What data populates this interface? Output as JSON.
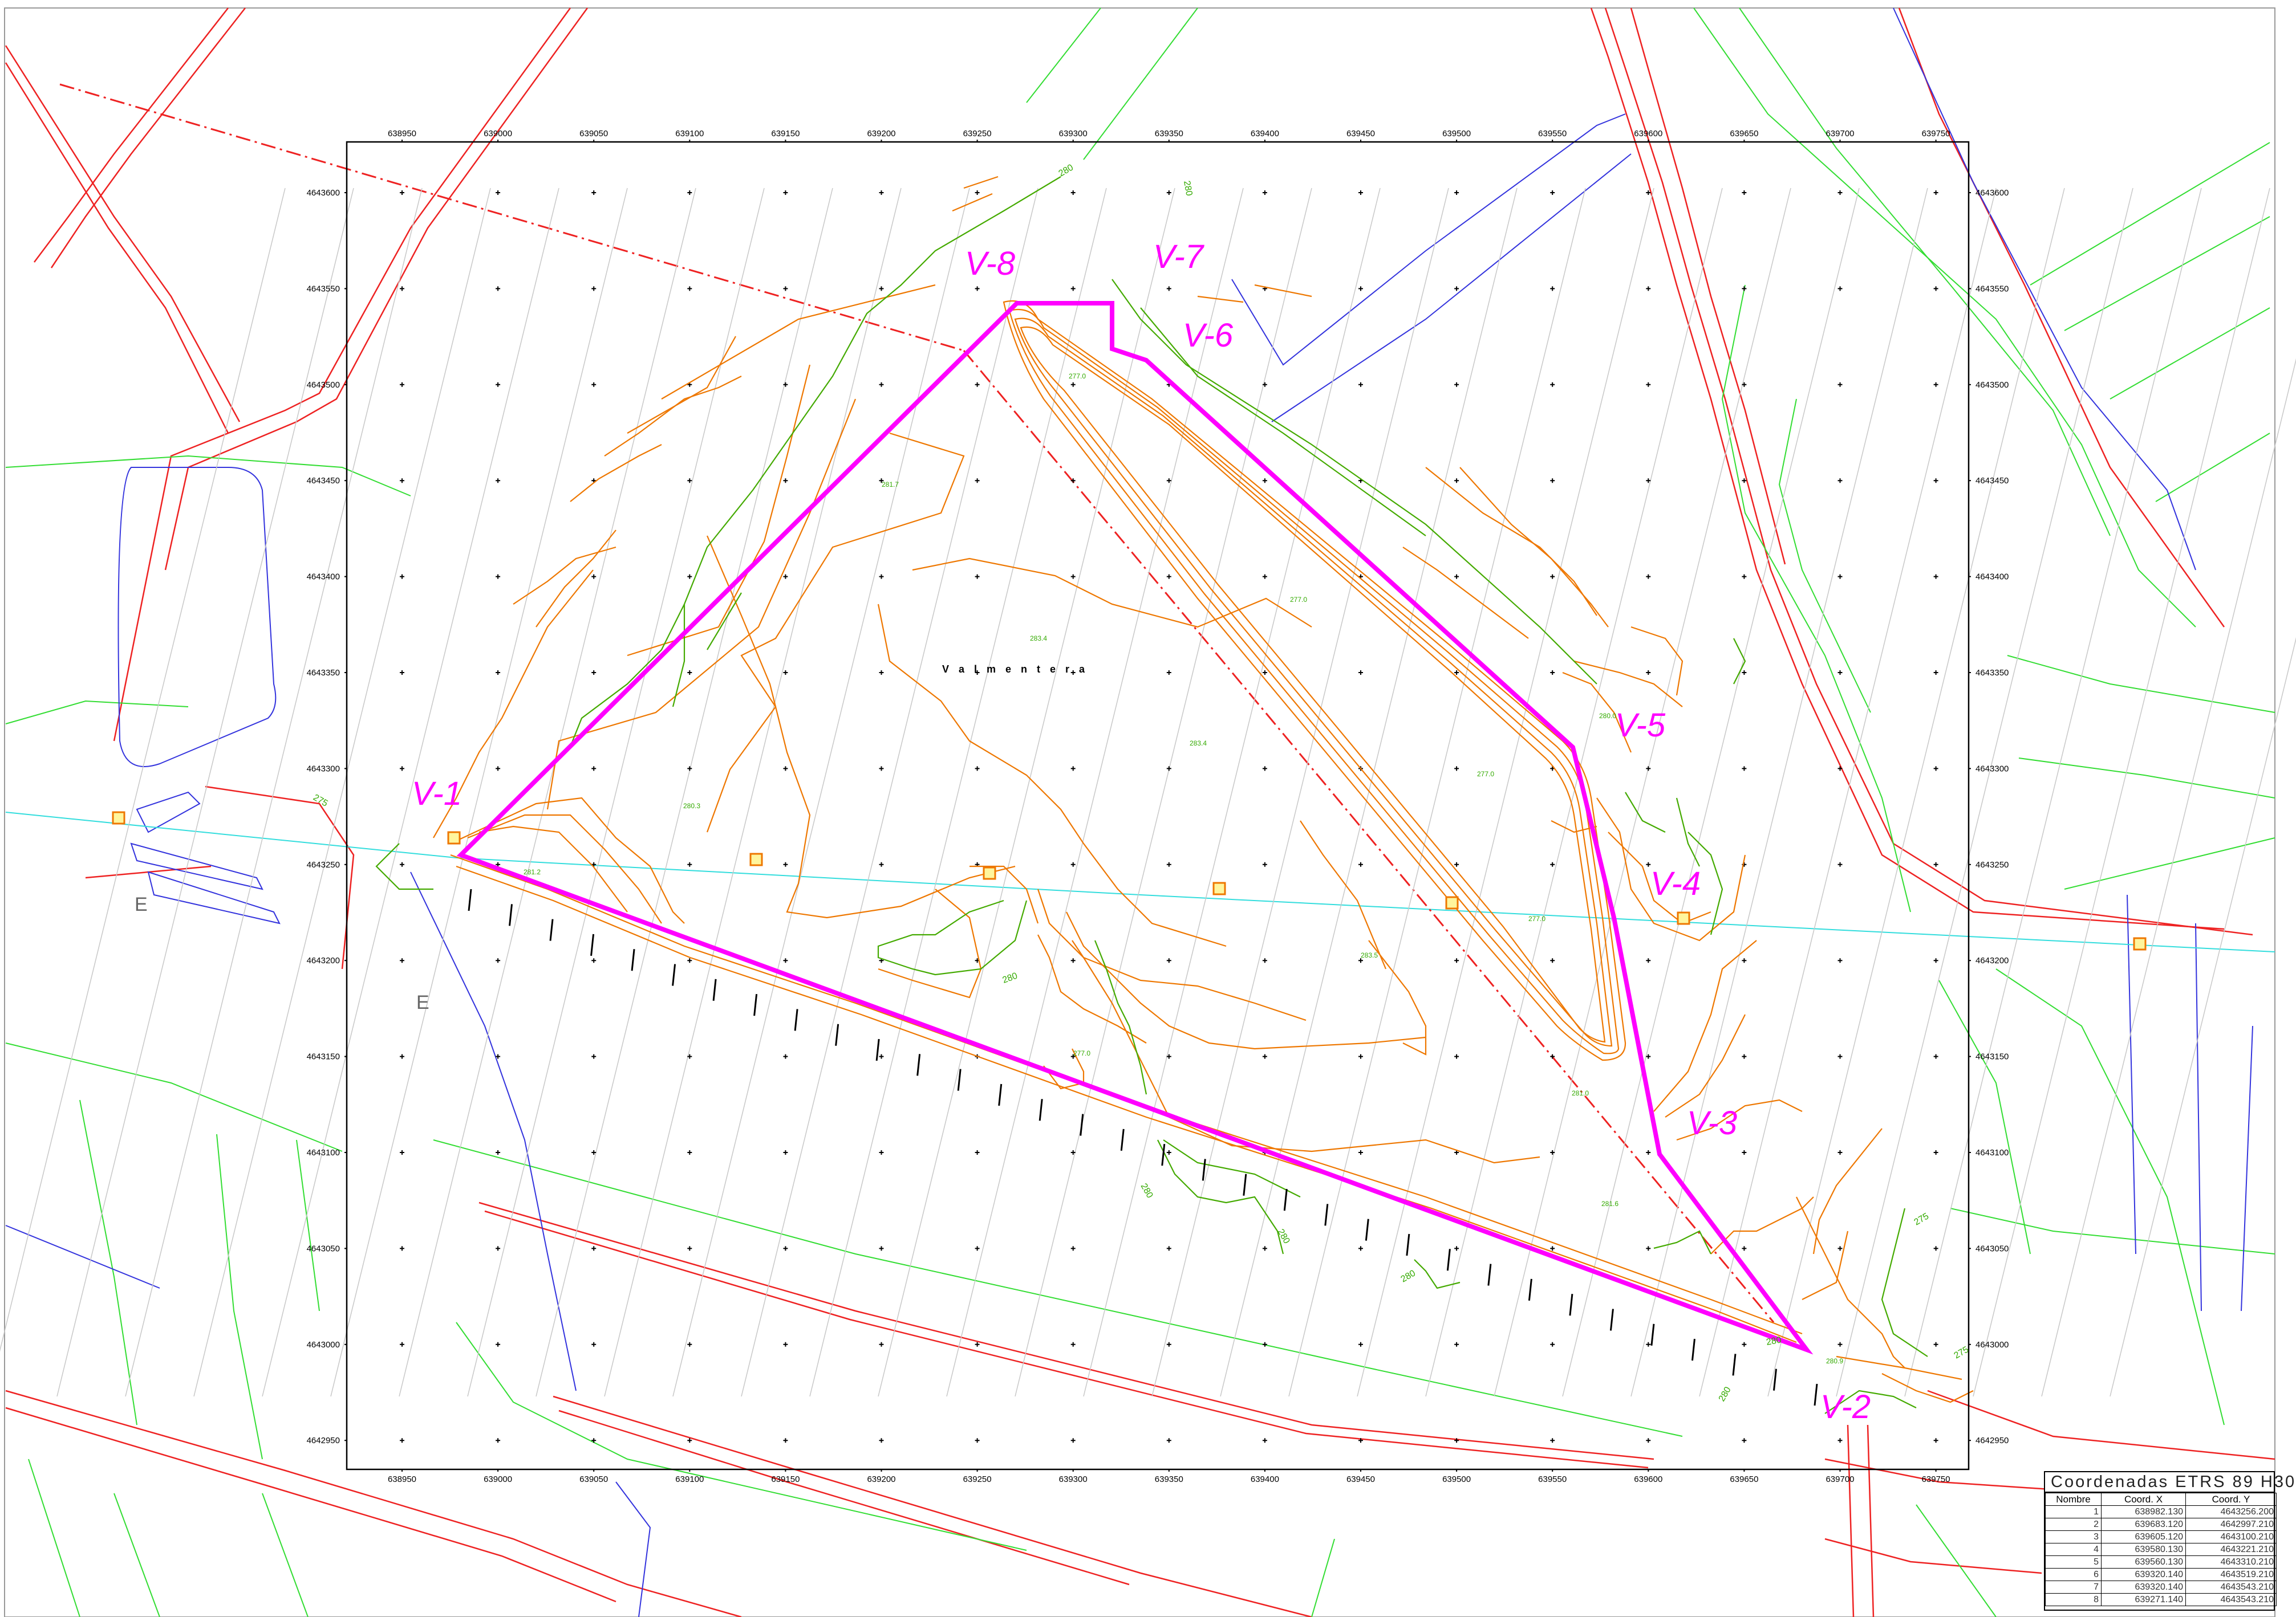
{
  "map": {
    "place_name": "V a l m e n t e r a",
    "axis_x": [
      "638950",
      "639000",
      "639050",
      "639100",
      "639150",
      "639200",
      "639250",
      "639300",
      "639350",
      "639400",
      "639450",
      "639500",
      "639550",
      "639600",
      "639650",
      "639700",
      "639750"
    ],
    "axis_y": [
      "4643600",
      "4643550",
      "4643500",
      "4643450",
      "4643400",
      "4643350",
      "4643300",
      "4643250",
      "4643200",
      "4643150",
      "4643100",
      "4643050",
      "4643000",
      "4642950"
    ],
    "vertex_labels": [
      "V-1",
      "V-2",
      "V-3",
      "V-4",
      "V-5",
      "V-6",
      "V-7",
      "V-8"
    ],
    "contour_labels": [
      "280",
      "275",
      "280",
      "280",
      "280",
      "280",
      "280",
      "280",
      "280",
      "275",
      "275"
    ],
    "spot_elevations": [
      "281.7",
      "283.4",
      "277.0",
      "277.0",
      "280.3",
      "283.4",
      "277.0",
      "283.5",
      "277.0",
      "281.0",
      "281.6",
      "281.2",
      "280.0",
      "277.0",
      "280.9"
    ],
    "colors": {
      "boundary": "#ff00ff",
      "contour_major": "#ee7700",
      "contour_minor": "#44aa00",
      "road": "#ee2222",
      "vegetation": "#33dd33",
      "water": "#3333dd",
      "powerline": "#33dddd",
      "grid": "#c8c8c8"
    },
    "icons": {
      "vertex_marker": "orange-square-marker",
      "grid_cross": "plus-marker"
    }
  },
  "coord_table": {
    "title": "Coordenadas ETRS 89 H30",
    "headers": [
      "Nombre",
      "Coord. X",
      "Coord. Y"
    ],
    "rows": [
      [
        "1",
        "638982.130",
        "4643256.200"
      ],
      [
        "2",
        "639683.120",
        "4642997.210"
      ],
      [
        "3",
        "639605.120",
        "4643100.210"
      ],
      [
        "4",
        "639580.130",
        "4643221.210"
      ],
      [
        "5",
        "639560.130",
        "4643310.210"
      ],
      [
        "6",
        "639320.140",
        "4643519.210"
      ],
      [
        "7",
        "639320.140",
        "4643543.210"
      ],
      [
        "8",
        "639271.140",
        "4643543.210"
      ]
    ]
  }
}
